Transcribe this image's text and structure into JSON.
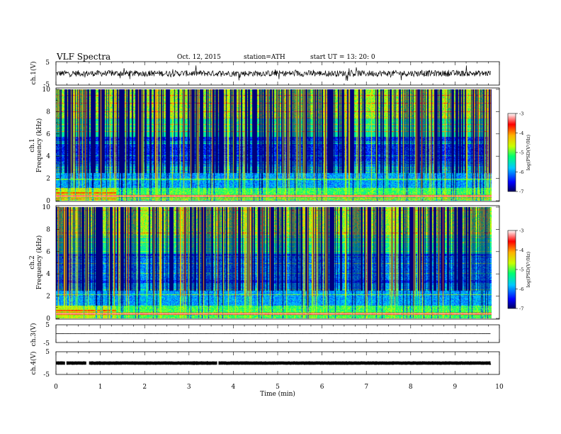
{
  "header": {
    "title": "VLF  Spectra",
    "date": "Oct. 12, 2015",
    "station": "station=ATH",
    "start_ut": "start  UT =   13: 20: 0"
  },
  "chart_data": [
    {
      "type": "line",
      "ylabel": "ch.1(V)",
      "ylim": [
        -5,
        5
      ],
      "yticks": [
        "5",
        "-5"
      ],
      "baseline": 0,
      "noise_amplitude": 1.3,
      "color": "#000000"
    },
    {
      "type": "heatmap",
      "ylabel": "ch.1",
      "ylabel2": "Frequency  (kHz)",
      "ylim": [
        0,
        10
      ],
      "yticks": [
        "0",
        "2",
        "4",
        "6",
        "8",
        "10"
      ],
      "colorbar": {
        "label": "log(PSD(V²/Hz)",
        "range": [
          -7,
          -3
        ],
        "ticks": [
          "-3",
          "-4",
          "-5",
          "-6",
          "-7"
        ],
        "colors": [
          "#000060",
          "#0000ff",
          "#00c8ff",
          "#00ff70",
          "#c8ff00",
          "#ffb000",
          "#ff0000",
          "#ffffff"
        ]
      }
    },
    {
      "type": "heatmap",
      "ylabel": "ch.2",
      "ylabel2": "Frequency  (kHz)",
      "ylim": [
        0,
        10
      ],
      "yticks": [
        "0",
        "2",
        "4",
        "6",
        "8",
        "10"
      ],
      "colorbar": {
        "label": "log(PSD(V²/Hz)",
        "range": [
          -7,
          -3
        ],
        "ticks": [
          "-3",
          "-4",
          "-5",
          "-6",
          "-7"
        ],
        "colors": [
          "#000060",
          "#0000ff",
          "#00c8ff",
          "#00ff70",
          "#c8ff00",
          "#ffb000",
          "#ff0000",
          "#ffffff"
        ]
      }
    },
    {
      "type": "line",
      "ylabel": "ch.3(V)",
      "ylim": [
        -5,
        5
      ],
      "yticks": [
        "5",
        "-5"
      ],
      "baseline": 0,
      "noise_amplitude": 0.05,
      "color": "#000000"
    },
    {
      "type": "line",
      "ylabel": "ch.4(V)",
      "ylim": [
        -5,
        5
      ],
      "yticks": [
        "5",
        "-5"
      ],
      "baseline": 0,
      "noise_amplitude": 0.2,
      "color": "#000000"
    }
  ],
  "xaxis": {
    "label": "Time  (min)",
    "xlim": [
      0,
      10
    ],
    "data_end": 9.8,
    "ticks": [
      "0",
      "1",
      "2",
      "3",
      "4",
      "5",
      "6",
      "7",
      "8",
      "9",
      "10"
    ]
  }
}
